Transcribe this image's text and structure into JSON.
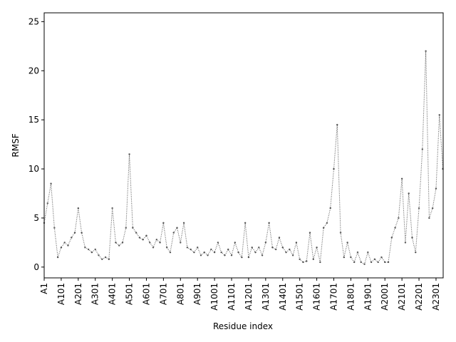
{
  "chart_data": {
    "type": "line",
    "xlabel": "Residue index",
    "ylabel": "RMSF",
    "color": "#555555",
    "x": [
      1,
      21,
      41,
      61,
      81,
      101,
      121,
      141,
      161,
      181,
      201,
      221,
      241,
      261,
      281,
      301,
      321,
      341,
      361,
      381,
      401,
      421,
      441,
      461,
      481,
      501,
      521,
      541,
      561,
      581,
      601,
      621,
      641,
      661,
      681,
      701,
      721,
      741,
      761,
      781,
      801,
      821,
      841,
      861,
      881,
      901,
      921,
      941,
      961,
      981,
      1001,
      1021,
      1041,
      1061,
      1081,
      1101,
      1121,
      1141,
      1161,
      1181,
      1201,
      1221,
      1241,
      1261,
      1281,
      1301,
      1321,
      1341,
      1361,
      1381,
      1401,
      1421,
      1441,
      1461,
      1481,
      1501,
      1521,
      1541,
      1561,
      1581,
      1601,
      1621,
      1641,
      1661,
      1681,
      1701,
      1721,
      1741,
      1761,
      1781,
      1801,
      1821,
      1841,
      1861,
      1881,
      1901,
      1921,
      1941,
      1961,
      1981,
      2001,
      2021,
      2041,
      2061,
      2081,
      2101,
      2121,
      2141,
      2161,
      2181,
      2201,
      2221,
      2241,
      2261,
      2281,
      2301,
      2321,
      2341
    ],
    "values": [
      4.5,
      6.5,
      8.5,
      4,
      1,
      2,
      2.5,
      2.2,
      3,
      3.5,
      6,
      3.5,
      2,
      1.8,
      1.5,
      1.8,
      1.2,
      0.8,
      1,
      0.8,
      6,
      2.5,
      2.2,
      2.5,
      4,
      11.5,
      4,
      3.5,
      3,
      2.8,
      3.2,
      2.5,
      2,
      2.8,
      2.5,
      4.5,
      2,
      1.5,
      3.5,
      4,
      2.5,
      4.5,
      2,
      1.8,
      1.5,
      2,
      1.2,
      1.5,
      1.2,
      1.8,
      1.5,
      2.5,
      1.5,
      1.2,
      1.8,
      1.2,
      2.5,
      1.5,
      1,
      4.5,
      1,
      2,
      1.5,
      2,
      1.2,
      2.5,
      4.5,
      2,
      1.8,
      3,
      2,
      1.5,
      1.8,
      1.2,
      2.5,
      0.8,
      0.5,
      0.6,
      3.5,
      0.8,
      2,
      0.5,
      4,
      4.5,
      6,
      10,
      14.5,
      3.5,
      1,
      2.5,
      1,
      0.5,
      1.5,
      0.5,
      0.3,
      1.5,
      0.5,
      0.8,
      0.5,
      1,
      0.5,
      0.5,
      3,
      4,
      5,
      9,
      2.5,
      7.5,
      3,
      1.5,
      6,
      12,
      22,
      5,
      6,
      8,
      15.5,
      10
    ],
    "xlim": [
      1,
      2343
    ],
    "ylim": [
      -1.1,
      25.9
    ],
    "yticks": [
      0,
      5,
      10,
      15,
      20,
      25
    ],
    "xticks": [
      {
        "value": 1,
        "label": "A1"
      },
      {
        "value": 101,
        "label": "A101"
      },
      {
        "value": 201,
        "label": "A201"
      },
      {
        "value": 301,
        "label": "A301"
      },
      {
        "value": 401,
        "label": "A401"
      },
      {
        "value": 501,
        "label": "A501"
      },
      {
        "value": 601,
        "label": "A601"
      },
      {
        "value": 701,
        "label": "A701"
      },
      {
        "value": 801,
        "label": "A801"
      },
      {
        "value": 901,
        "label": "A901"
      },
      {
        "value": 1001,
        "label": "A1001"
      },
      {
        "value": 1101,
        "label": "A1101"
      },
      {
        "value": 1201,
        "label": "A1201"
      },
      {
        "value": 1301,
        "label": "A1301"
      },
      {
        "value": 1401,
        "label": "A1401"
      },
      {
        "value": 1501,
        "label": "A1501"
      },
      {
        "value": 1601,
        "label": "A1601"
      },
      {
        "value": 1701,
        "label": "A1701"
      },
      {
        "value": 1801,
        "label": "A1801"
      },
      {
        "value": 1901,
        "label": "A1901"
      },
      {
        "value": 2001,
        "label": "A2001"
      },
      {
        "value": 2101,
        "label": "A2101"
      },
      {
        "value": 2201,
        "label": "A2201"
      },
      {
        "value": 2301,
        "label": "A2301"
      }
    ]
  }
}
